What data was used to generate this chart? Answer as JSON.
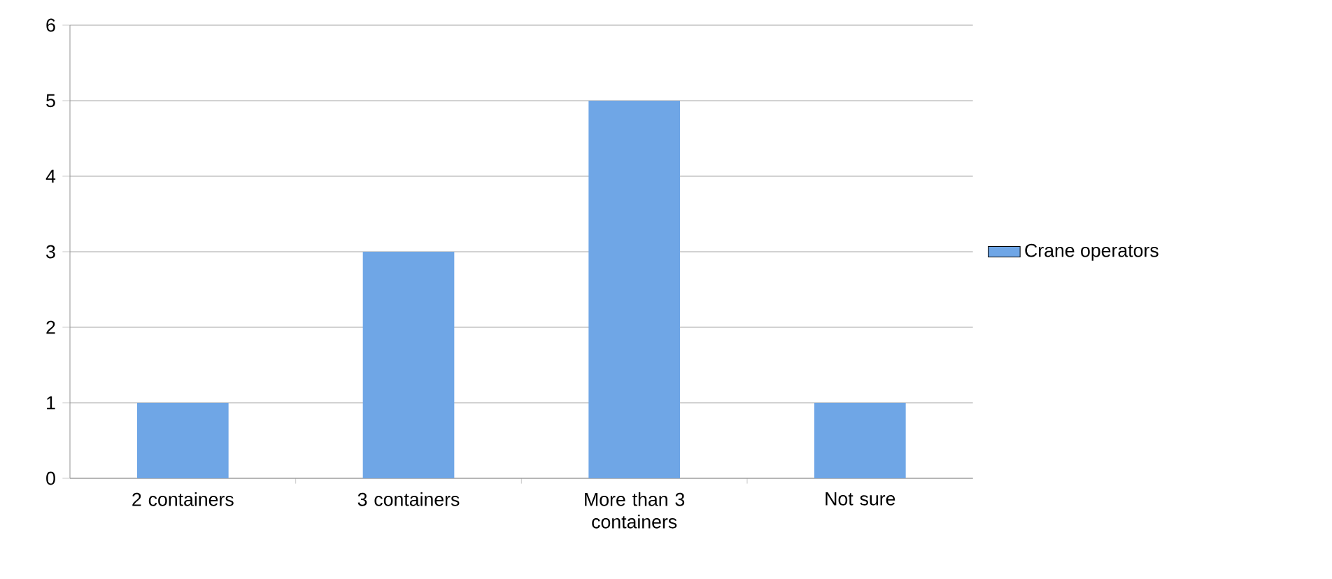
{
  "chart_data": {
    "type": "bar",
    "categories": [
      "2 containers",
      "3 containers",
      "More than 3 containers",
      "Not sure"
    ],
    "series": [
      {
        "name": "Crane operators",
        "color": "#6fa6e6",
        "values": [
          1,
          3,
          5,
          1
        ]
      }
    ],
    "ylim": [
      0,
      6
    ],
    "yticks": [
      0,
      1,
      2,
      3,
      4,
      5,
      6
    ],
    "grid": "y",
    "legend": "right"
  }
}
